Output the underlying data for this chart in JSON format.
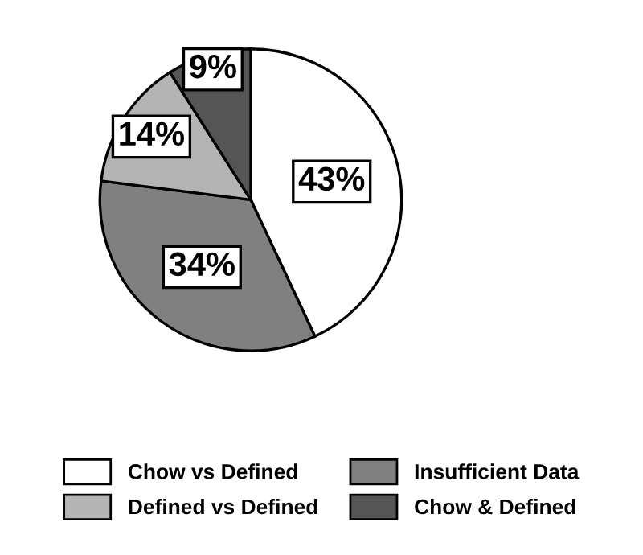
{
  "chart_data": {
    "type": "pie",
    "categories": [
      "Chow vs Defined",
      "Insufficient Data",
      "Defined vs Defined",
      "Chow & Defined"
    ],
    "values": [
      43,
      34,
      14,
      9
    ],
    "colors": [
      "#ffffff",
      "#808080",
      "#b4b4b4",
      "#555555"
    ],
    "value_labels": [
      "43%",
      "34%",
      "14%",
      "9%"
    ],
    "legend": "bottom"
  }
}
